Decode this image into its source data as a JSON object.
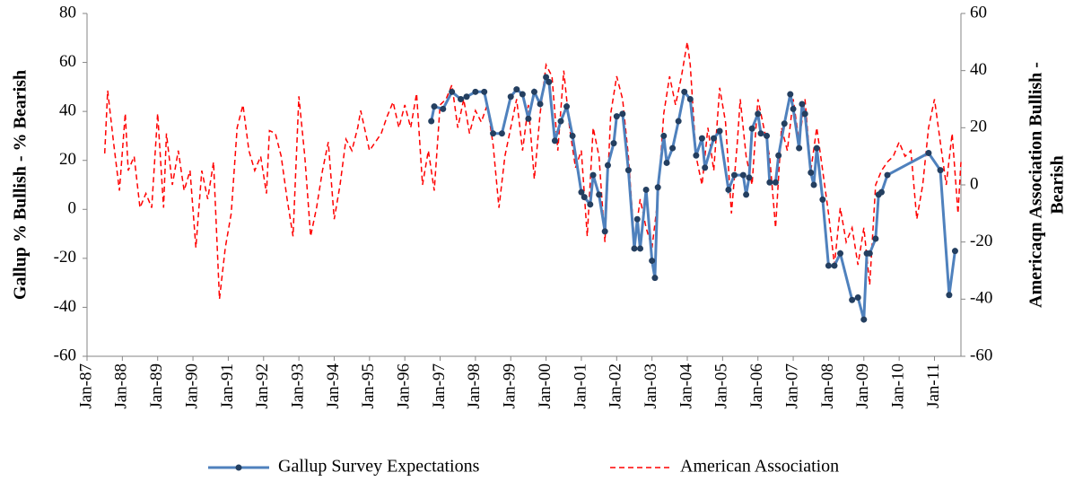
{
  "chart_data": {
    "type": "line",
    "ylabel": "Gallup % Bullish - % Bearish",
    "y2label": [
      "Americaqn Association Bullish -",
      "Bearish"
    ],
    "xlim": [
      "1987-01",
      "2011-10"
    ],
    "xticks": [
      {
        "value": "1987-01",
        "label": "Jan-87"
      },
      {
        "value": "1988-01",
        "label": "Jan-88"
      },
      {
        "value": "1989-01",
        "label": "Jan-89"
      },
      {
        "value": "1990-01",
        "label": "Jan-90"
      },
      {
        "value": "1991-01",
        "label": "Jan-91"
      },
      {
        "value": "1992-01",
        "label": "Jan-92"
      },
      {
        "value": "1993-01",
        "label": "Jan-93"
      },
      {
        "value": "1994-01",
        "label": "Jan-94"
      },
      {
        "value": "1995-01",
        "label": "Jan-95"
      },
      {
        "value": "1996-01",
        "label": "Jan-96"
      },
      {
        "value": "1997-01",
        "label": "Jan-97"
      },
      {
        "value": "1998-01",
        "label": "Jan-98"
      },
      {
        "value": "1999-01",
        "label": "Jan-99"
      },
      {
        "value": "2000-01",
        "label": "Jan-00"
      },
      {
        "value": "2001-01",
        "label": "Jan-01"
      },
      {
        "value": "2002-01",
        "label": "Jan-02"
      },
      {
        "value": "2003-01",
        "label": "Jan-03"
      },
      {
        "value": "2004-01",
        "label": "Jan-04"
      },
      {
        "value": "2005-01",
        "label": "Jan-05"
      },
      {
        "value": "2006-01",
        "label": "Jan-06"
      },
      {
        "value": "2007-01",
        "label": "Jan-07"
      },
      {
        "value": "2008-01",
        "label": "Jan-08"
      },
      {
        "value": "2009-01",
        "label": "Jan-09"
      },
      {
        "value": "2010-01",
        "label": "Jan-10"
      },
      {
        "value": "2011-01",
        "label": "Jan-11"
      }
    ],
    "ylim": [
      -60,
      80
    ],
    "yticks": [
      -60,
      -40,
      -20,
      0,
      20,
      40,
      60,
      80
    ],
    "y2lim": [
      -60,
      60
    ],
    "y2ticks": [
      -60,
      -40,
      -20,
      0,
      20,
      40,
      60
    ],
    "series": [
      {
        "name": "Gallup Survey Expectations",
        "color": "#4f81bd",
        "marker_color": "#243f60",
        "markers": true,
        "dashed": false,
        "x": [
          "1996-10",
          "1996-11",
          "1997-02",
          "1997-05",
          "1997-08",
          "1997-10",
          "1998-01",
          "1998-04",
          "1998-07",
          "1998-10",
          "1999-01",
          "1999-03",
          "1999-05",
          "1999-07",
          "1999-09",
          "1999-11",
          "2000-01",
          "2000-02",
          "2000-04",
          "2000-06",
          "2000-08",
          "2000-10",
          "2001-01",
          "2001-02",
          "2001-04",
          "2001-05",
          "2001-07",
          "2001-09",
          "2001-10",
          "2001-12",
          "2002-01",
          "2002-03",
          "2002-05",
          "2002-07",
          "2002-08",
          "2002-09",
          "2002-11",
          "2003-01",
          "2003-02",
          "2003-03",
          "2003-05",
          "2003-06",
          "2003-08",
          "2003-10",
          "2003-12",
          "2004-02",
          "2004-04",
          "2004-06",
          "2004-07",
          "2004-10",
          "2004-12",
          "2005-03",
          "2005-05",
          "2005-08",
          "2005-09",
          "2005-10",
          "2005-11",
          "2006-01",
          "2006-02",
          "2006-04",
          "2006-05",
          "2006-07",
          "2006-08",
          "2006-10",
          "2006-12",
          "2007-01",
          "2007-03",
          "2007-04",
          "2007-05",
          "2007-07",
          "2007-08",
          "2007-09",
          "2007-11",
          "2008-01",
          "2008-03",
          "2008-05",
          "2008-09",
          "2008-11",
          "2009-01",
          "2009-02",
          "2009-03",
          "2009-05",
          "2009-06",
          "2009-07",
          "2009-09",
          "2010-11",
          "2011-03",
          "2011-06",
          "2011-08"
        ],
        "values": [
          36,
          42,
          41,
          48,
          45,
          46,
          48,
          48,
          31,
          31,
          46,
          49,
          47,
          37,
          48,
          43,
          54,
          52,
          28,
          36,
          42,
          30,
          7,
          5,
          2,
          14,
          6,
          -9,
          18,
          27,
          38,
          39,
          16,
          -16,
          -4,
          -16,
          8,
          -21,
          -28,
          9,
          30,
          19,
          25,
          36,
          48,
          45,
          22,
          29,
          17,
          29,
          32,
          8,
          14,
          14,
          6,
          13,
          33,
          39,
          31,
          30,
          11,
          11,
          22,
          35,
          47,
          41,
          25,
          43,
          39,
          15,
          10,
          25,
          4,
          -23,
          -23,
          -18,
          -37,
          -36,
          -45,
          -18,
          -18,
          -12,
          6,
          7,
          14,
          23,
          16,
          -35,
          -17
        ]
      },
      {
        "name": "American Association",
        "color": "#ff0000",
        "markers": false,
        "dashed": true,
        "axis": "y2",
        "x": [
          "1987-07",
          "1987-08",
          "1987-10",
          "1987-12",
          "1988-02",
          "1988-03",
          "1988-05",
          "1988-07",
          "1988-09",
          "1988-11",
          "1989-01",
          "1989-03",
          "1989-04",
          "1989-06",
          "1989-08",
          "1989-10",
          "1989-12",
          "1990-02",
          "1990-04",
          "1990-06",
          "1990-08",
          "1990-10",
          "1990-12",
          "1991-02",
          "1991-04",
          "1991-06",
          "1991-08",
          "1991-10",
          "1991-12",
          "1992-02",
          "1992-03",
          "1992-05",
          "1992-07",
          "1992-09",
          "1992-11",
          "1993-01",
          "1993-03",
          "1993-05",
          "1993-07",
          "1993-09",
          "1993-11",
          "1994-01",
          "1994-03",
          "1994-05",
          "1994-07",
          "1994-09",
          "1994-10",
          "1995-01",
          "1995-03",
          "1995-05",
          "1995-07",
          "1995-09",
          "1995-11",
          "1996-01",
          "1996-03",
          "1996-05",
          "1996-07",
          "1996-09",
          "1996-11",
          "1997-01",
          "1997-03",
          "1997-05",
          "1997-07",
          "1997-09",
          "1997-11",
          "1998-01",
          "1998-03",
          "1998-05",
          "1998-07",
          "1998-09",
          "1998-11",
          "1999-01",
          "1999-03",
          "1999-05",
          "1999-07",
          "1999-09",
          "1999-11",
          "2000-01",
          "2000-03",
          "2000-05",
          "2000-07",
          "2000-09",
          "2000-11",
          "2001-01",
          "2001-03",
          "2001-05",
          "2001-07",
          "2001-09",
          "2001-11",
          "2002-01",
          "2002-03",
          "2002-05",
          "2002-07",
          "2002-09",
          "2002-11",
          "2003-01",
          "2003-03",
          "2003-05",
          "2003-07",
          "2003-09",
          "2003-11",
          "2004-01",
          "2004-02",
          "2004-04",
          "2004-06",
          "2004-08",
          "2004-10",
          "2004-12",
          "2005-02",
          "2005-04",
          "2005-06",
          "2005-07",
          "2005-09",
          "2005-11",
          "2006-01",
          "2006-03",
          "2006-05",
          "2006-07",
          "2006-09",
          "2006-11",
          "2007-01",
          "2007-03",
          "2007-05",
          "2007-07",
          "2007-09",
          "2007-11",
          "2008-01",
          "2008-03",
          "2008-05",
          "2008-07",
          "2008-09",
          "2008-11",
          "2009-01",
          "2009-03",
          "2009-05",
          "2009-07",
          "2009-09",
          "2009-11",
          "2010-01",
          "2010-03",
          "2010-05",
          "2010-07",
          "2010-09",
          "2010-11",
          "2011-01",
          "2011-03",
          "2011-05",
          "2011-07",
          "2011-09",
          "2011-10"
        ],
        "values": [
          11,
          33,
          15,
          -2,
          25,
          5,
          10,
          -8,
          -3,
          -8,
          25,
          -8,
          18,
          0,
          12,
          -2,
          5,
          -22,
          5,
          -5,
          8,
          -40,
          -22,
          -10,
          20,
          28,
          12,
          5,
          10,
          -3,
          19,
          18,
          10,
          -5,
          -18,
          31,
          10,
          -18,
          -8,
          5,
          15,
          -12,
          0,
          16,
          12,
          20,
          26,
          12,
          15,
          18,
          24,
          29,
          20,
          28,
          20,
          32,
          0,
          12,
          -2,
          28,
          30,
          35,
          20,
          30,
          18,
          26,
          22,
          28,
          14,
          -8,
          10,
          20,
          30,
          12,
          28,
          2,
          25,
          42,
          38,
          12,
          40,
          20,
          6,
          12,
          -18,
          20,
          10,
          -20,
          25,
          38,
          30,
          10,
          -20,
          -5,
          -15,
          -22,
          -5,
          25,
          38,
          28,
          38,
          50,
          42,
          10,
          0,
          20,
          5,
          34,
          22,
          -10,
          15,
          30,
          10,
          0,
          30,
          20,
          10,
          -15,
          20,
          12,
          30,
          15,
          30,
          5,
          20,
          5,
          -10,
          -28,
          -8,
          -20,
          -15,
          -28,
          -15,
          -35,
          0,
          5,
          8,
          10,
          15,
          10,
          12,
          -12,
          0,
          20,
          30,
          15,
          0,
          18,
          -10,
          8
        ]
      }
    ]
  }
}
